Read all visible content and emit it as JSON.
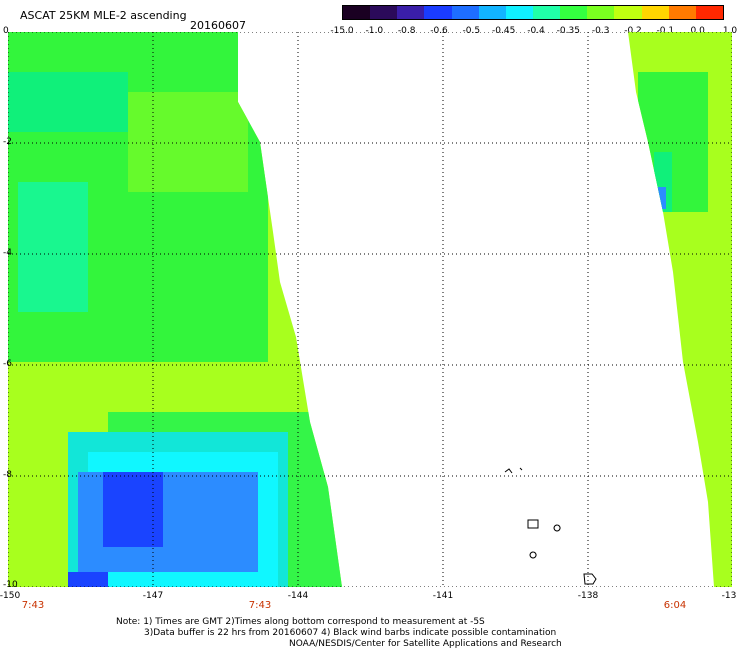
{
  "header": {
    "title": "ASCAT 25KM MLE-2 ascending",
    "date": "20160607"
  },
  "colorbar": {
    "labels": [
      "-15.0",
      "-1.0",
      "-0.8",
      "-0.6",
      "-0.5",
      "-0.45",
      "-0.4",
      "-0.35",
      "-0.3",
      "-0.2",
      "-0.1",
      "0.0",
      "1.0"
    ],
    "colors": [
      "#1a0022",
      "#2b0a5a",
      "#3a1ea8",
      "#1a3cff",
      "#1e6eff",
      "#12b4ff",
      "#10f0ff",
      "#20ffa8",
      "#34ff40",
      "#7aff20",
      "#c0ff10",
      "#ffd600",
      "#ff7a00",
      "#ff2800"
    ]
  },
  "axes": {
    "x_ticks": [
      "-150",
      "-147",
      "-144",
      "-141",
      "-138",
      "-13"
    ],
    "y_ticks": [
      "0",
      "-2",
      "-4",
      "-6",
      "-8",
      "-10"
    ]
  },
  "times": [
    "7:43",
    "7:43",
    "6:04"
  ],
  "notes": {
    "line1": "Note: 1) Times are GMT 2)Times along bottom correspond to measurement at -5S",
    "line2": "3)Data buffer is 22 hrs from 20160607 4) Black wind barbs indicate possible contamination",
    "line3": "NOAA/NESDIS/Center for Satellite Applications and Research"
  }
}
